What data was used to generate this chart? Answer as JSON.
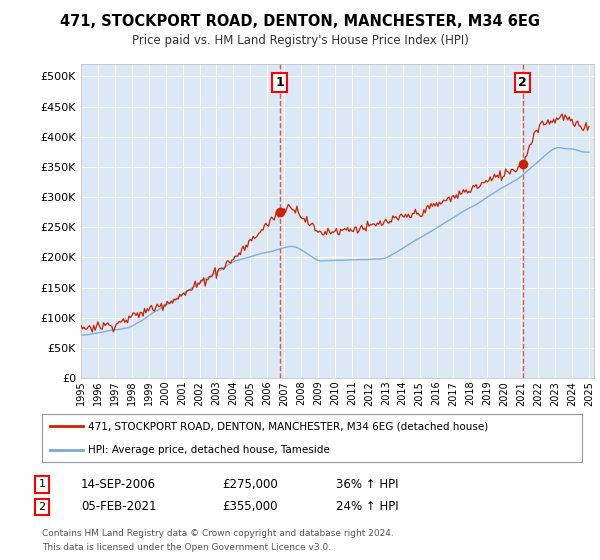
{
  "title": "471, STOCKPORT ROAD, DENTON, MANCHESTER, M34 6EG",
  "subtitle": "Price paid vs. HM Land Registry's House Price Index (HPI)",
  "plot_bg_color": "#dce8f5",
  "yticks": [
    0,
    50000,
    100000,
    150000,
    200000,
    250000,
    300000,
    350000,
    400000,
    450000,
    500000
  ],
  "ytick_labels": [
    "£0",
    "£50K",
    "£100K",
    "£150K",
    "£200K",
    "£250K",
    "£300K",
    "£350K",
    "£400K",
    "£450K",
    "£500K"
  ],
  "ylim": [
    0,
    520000
  ],
  "xticks": [
    1995,
    1996,
    1997,
    1998,
    1999,
    2000,
    2001,
    2002,
    2003,
    2004,
    2005,
    2006,
    2007,
    2008,
    2009,
    2010,
    2011,
    2012,
    2013,
    2014,
    2015,
    2016,
    2017,
    2018,
    2019,
    2020,
    2021,
    2022,
    2023,
    2024,
    2025
  ],
  "hpi_color": "#7aaad0",
  "price_color": "#cc2200",
  "marker1_year": 2006.75,
  "marker1_price": 275000,
  "marker2_year": 2021.08,
  "marker2_price": 355000,
  "legend_label1": "471, STOCKPORT ROAD, DENTON, MANCHESTER, M34 6EG (detached house)",
  "legend_label2": "HPI: Average price, detached house, Tameside",
  "footer1": "Contains HM Land Registry data © Crown copyright and database right 2024.",
  "footer2": "This data is licensed under the Open Government Licence v3.0.",
  "annotation1_date": "14-SEP-2006",
  "annotation1_price": "£275,000",
  "annotation1_hpi": "36% ↑ HPI",
  "annotation2_date": "05-FEB-2021",
  "annotation2_price": "£355,000",
  "annotation2_hpi": "24% ↑ HPI"
}
